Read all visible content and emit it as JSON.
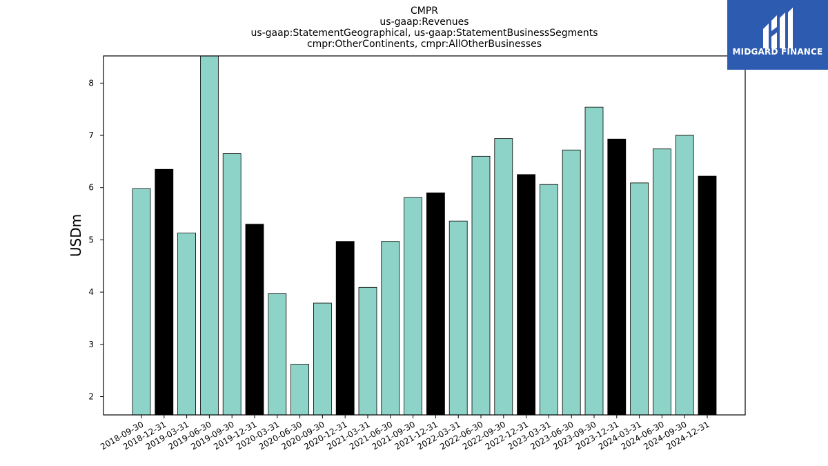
{
  "chart_data": {
    "type": "bar",
    "title_lines": [
      "CMPR",
      "us-gaap:Revenues",
      "us-gaap:StatementGeographical, us-gaap:StatementBusinessSegments",
      "cmpr:OtherContinents, cmpr:AllOtherBusinesses"
    ],
    "xlabel": "",
    "ylabel": "USDm",
    "ylim": [
      1.65,
      8.52
    ],
    "yticks": [
      2,
      3,
      4,
      5,
      6,
      7,
      8
    ],
    "categories": [
      "2018-09-30",
      "2018-12-31",
      "2019-03-31",
      "2019-06-30",
      "2019-09-30",
      "2019-12-31",
      "2020-03-31",
      "2020-06-30",
      "2020-09-30",
      "2020-12-31",
      "2021-03-31",
      "2021-06-30",
      "2021-09-30",
      "2021-12-31",
      "2022-03-31",
      "2022-06-30",
      "2022-09-30",
      "2022-12-31",
      "2023-03-31",
      "2023-06-30",
      "2023-09-30",
      "2023-12-31",
      "2024-03-31",
      "2024-06-30",
      "2024-09-30",
      "2024-12-31"
    ],
    "values": [
      5.98,
      6.35,
      5.13,
      8.55,
      6.65,
      5.3,
      3.97,
      2.62,
      3.79,
      4.97,
      4.09,
      4.97,
      5.81,
      5.9,
      5.36,
      6.6,
      6.94,
      6.25,
      6.06,
      6.72,
      7.54,
      6.93,
      6.09,
      6.74,
      7.0,
      6.22
    ],
    "highlight_color": "#000000",
    "base_color": "#8dd3c7",
    "highlight_rule": "December (Q4) periods shown in black",
    "grid": false,
    "legend": "none"
  },
  "logo": {
    "text": "MIDGARD FINANCE",
    "bg_color": "#2d5bb0"
  }
}
